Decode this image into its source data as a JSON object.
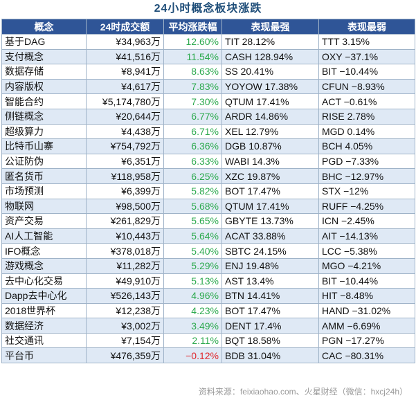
{
  "title": "24小时概念板块涨跌",
  "columns": [
    "概念",
    "24时成交额",
    "平均涨跌幅",
    "表现最强",
    "表现最弱"
  ],
  "rows": [
    {
      "name": "基于DAG",
      "volume": "¥34,963万",
      "avg": "12.60%",
      "best": "TIT 28.12%",
      "worst": "TTT 3.15%"
    },
    {
      "name": "支付概念",
      "volume": "¥41,516万",
      "avg": "11.54%",
      "best": "CASH 128.94%",
      "worst": "OXY −37.1%"
    },
    {
      "name": "数据存储",
      "volume": "¥8,941万",
      "avg": "8.63%",
      "best": "SS 20.41%",
      "worst": "BIT −10.44%"
    },
    {
      "name": "内容版权",
      "volume": "¥4,617万",
      "avg": "7.83%",
      "best": "YOYOW 17.38%",
      "worst": "CFUN −8.93%"
    },
    {
      "name": "智能合约",
      "volume": "¥5,174,780万",
      "avg": "7.30%",
      "best": "QTUM 17.41%",
      "worst": "ACT −0.61%"
    },
    {
      "name": "侧链概念",
      "volume": "¥20,644万",
      "avg": "6.77%",
      "best": "ARDR 14.86%",
      "worst": "RISE 2.78%"
    },
    {
      "name": "超级算力",
      "volume": "¥4,438万",
      "avg": "6.71%",
      "best": "XEL 12.79%",
      "worst": "MGD 0.14%"
    },
    {
      "name": "比特币山寨",
      "volume": "¥754,792万",
      "avg": "6.36%",
      "best": "DGB 10.87%",
      "worst": "BCH 4.05%"
    },
    {
      "name": "公证防伪",
      "volume": "¥6,351万",
      "avg": "6.33%",
      "best": "WABI 14.3%",
      "worst": "PGD −7.33%"
    },
    {
      "name": "匿名货币",
      "volume": "¥118,958万",
      "avg": "6.25%",
      "best": "XZC 19.87%",
      "worst": "BHC −12.97%"
    },
    {
      "name": "市场预测",
      "volume": "¥6,399万",
      "avg": "5.82%",
      "best": "BOT 17.47%",
      "worst": "STX −12%"
    },
    {
      "name": "物联网",
      "volume": "¥98,500万",
      "avg": "5.68%",
      "best": "QTUM 17.41%",
      "worst": "RUFF −4.25%"
    },
    {
      "name": "资产交易",
      "volume": "¥261,829万",
      "avg": "5.65%",
      "best": "GBYTE 13.73%",
      "worst": "ICN −2.45%"
    },
    {
      "name": "AI人工智能",
      "volume": "¥10,443万",
      "avg": "5.64%",
      "best": "ACAT 33.88%",
      "worst": "AIT −14.13%"
    },
    {
      "name": "IFO概念",
      "volume": "¥378,018万",
      "avg": "5.40%",
      "best": "SBTC 24.15%",
      "worst": "LCC −5.38%"
    },
    {
      "name": "游戏概念",
      "volume": "¥11,282万",
      "avg": "5.29%",
      "best": "ENJ 19.48%",
      "worst": "MGO −4.21%"
    },
    {
      "name": "去中心化交易",
      "volume": "¥49,910万",
      "avg": "5.13%",
      "best": "AST 13.4%",
      "worst": "BIT −10.44%"
    },
    {
      "name": "Dapp去中心化",
      "volume": "¥526,143万",
      "avg": "4.96%",
      "best": "BTN 14.41%",
      "worst": "HIT −8.48%"
    },
    {
      "name": "2018世界杯",
      "volume": "¥12,238万",
      "avg": "4.23%",
      "best": "BOT 17.47%",
      "worst": "HAND −31.02%"
    },
    {
      "name": "数据经济",
      "volume": "¥3,002万",
      "avg": "3.49%",
      "best": "DENT 17.4%",
      "worst": "AMM −6.69%"
    },
    {
      "name": "社交通讯",
      "volume": "¥7,154万",
      "avg": "2.11%",
      "best": "BQT 18.58%",
      "worst": "PGN −17.27%"
    },
    {
      "name": "平台币",
      "volume": "¥476,359万",
      "avg": "−0.12%",
      "best": "BDB 31.04%",
      "worst": "CAC −80.31%"
    }
  ],
  "colors": {
    "header_bg": "#2f5597",
    "stripe": "#dfe9f5",
    "up": "#2eaa4f",
    "down": "#e0262b",
    "title": "#1f4e79"
  },
  "footer": "资料来源：feixiaohao.com、火星财经（微信：hxcj24h）"
}
